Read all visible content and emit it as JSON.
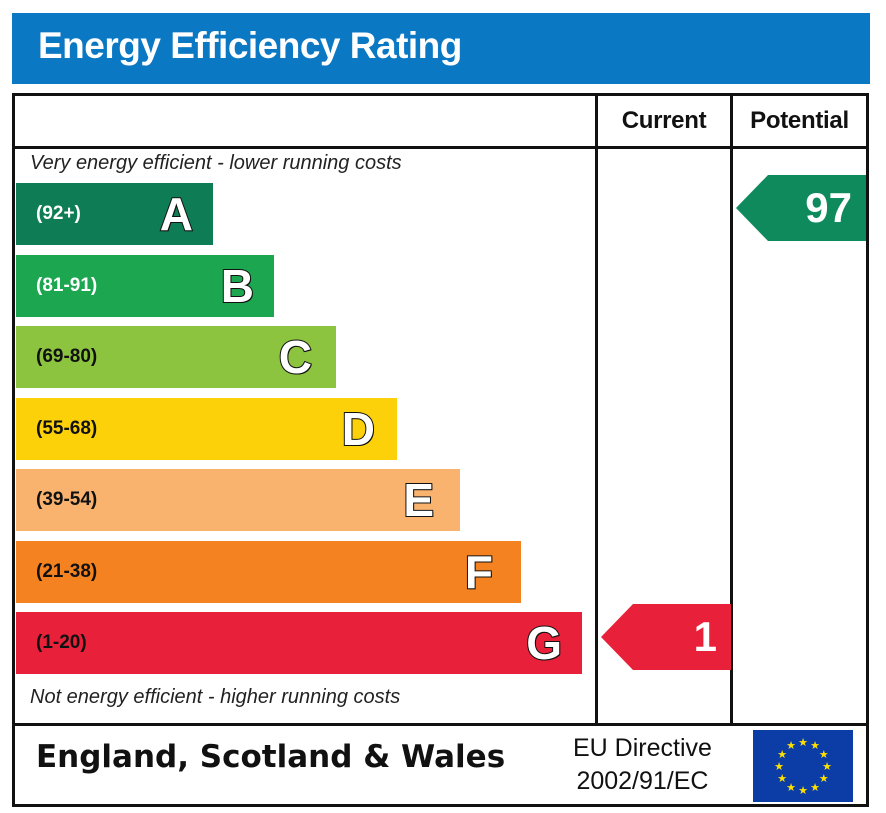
{
  "title": "Energy Efficiency Rating",
  "header": {
    "current_label": "Current",
    "potential_label": "Potential"
  },
  "notes": {
    "top": "Very energy efficient - lower running costs",
    "bottom": "Not energy efficient - higher running costs"
  },
  "footer": {
    "region": "England, Scotland & Wales",
    "directive_line1": "EU Directive",
    "directive_line2": "2002/91/EC",
    "flag_icon": "eu-flag-icon"
  },
  "chart_data": {
    "type": "bar",
    "title": "Energy Efficiency Rating",
    "orientation": "horizontal",
    "categories": [
      "A",
      "B",
      "C",
      "D",
      "E",
      "F",
      "G"
    ],
    "bands": [
      {
        "letter": "A",
        "range": "(92+)",
        "min": 92,
        "max": 100,
        "color": "#0e7d55",
        "text_color": "#ffffff"
      },
      {
        "letter": "B",
        "range": "(81-91)",
        "min": 81,
        "max": 91,
        "color": "#1ca64f",
        "text_color": "#ffffff"
      },
      {
        "letter": "C",
        "range": "(69-80)",
        "min": 69,
        "max": 80,
        "color": "#8cc43f",
        "text_color": "#111111"
      },
      {
        "letter": "D",
        "range": "(55-68)",
        "min": 55,
        "max": 68,
        "color": "#fdd10a",
        "text_color": "#111111"
      },
      {
        "letter": "E",
        "range": "(39-54)",
        "min": 39,
        "max": 54,
        "color": "#f9b36f",
        "text_color": "#111111"
      },
      {
        "letter": "F",
        "range": "(21-38)",
        "min": 21,
        "max": 38,
        "color": "#f58220",
        "text_color": "#111111"
      },
      {
        "letter": "G",
        "range": "(1-20)",
        "min": 1,
        "max": 20,
        "color": "#e8203a",
        "text_color": "#111111"
      }
    ],
    "current": {
      "value": 1,
      "band": "G",
      "color": "#e8203a"
    },
    "potential": {
      "value": 97,
      "band": "A",
      "color": "#0e8a5c"
    }
  }
}
